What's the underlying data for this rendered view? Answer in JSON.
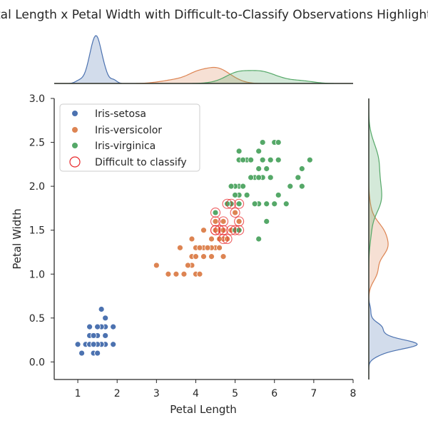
{
  "chart_data": {
    "type": "scatter",
    "title": "Petal Length x Petal Width with Difficult-to-Classify Observations Highlighted",
    "xlabel": "Petal Length",
    "ylabel": "Petal Width",
    "xlim": [
      0.4,
      8.0
    ],
    "ylim": [
      -0.2,
      3.0
    ],
    "xticks": [
      "1",
      "2",
      "3",
      "4",
      "5",
      "6",
      "7",
      "8"
    ],
    "yticks": [
      "0.0",
      "0.5",
      "1.0",
      "1.5",
      "2.0",
      "2.5",
      "3.0"
    ],
    "grid": false,
    "legend_position": "top-left",
    "marginal_x": "kde",
    "marginal_y": "kde",
    "series": [
      {
        "name": "Iris-setosa",
        "color": "#4c72b0",
        "points": [
          [
            1.4,
            0.2
          ],
          [
            1.4,
            0.2
          ],
          [
            1.3,
            0.2
          ],
          [
            1.5,
            0.2
          ],
          [
            1.4,
            0.2
          ],
          [
            1.7,
            0.4
          ],
          [
            1.4,
            0.3
          ],
          [
            1.5,
            0.2
          ],
          [
            1.4,
            0.2
          ],
          [
            1.5,
            0.1
          ],
          [
            1.5,
            0.2
          ],
          [
            1.6,
            0.2
          ],
          [
            1.4,
            0.1
          ],
          [
            1.1,
            0.1
          ],
          [
            1.2,
            0.2
          ],
          [
            1.5,
            0.4
          ],
          [
            1.3,
            0.4
          ],
          [
            1.4,
            0.3
          ],
          [
            1.7,
            0.3
          ],
          [
            1.5,
            0.3
          ],
          [
            1.7,
            0.2
          ],
          [
            1.5,
            0.4
          ],
          [
            1.0,
            0.2
          ],
          [
            1.7,
            0.5
          ],
          [
            1.9,
            0.2
          ],
          [
            1.6,
            0.2
          ],
          [
            1.6,
            0.4
          ],
          [
            1.5,
            0.2
          ],
          [
            1.4,
            0.2
          ],
          [
            1.6,
            0.2
          ],
          [
            1.6,
            0.2
          ],
          [
            1.5,
            0.4
          ],
          [
            1.5,
            0.1
          ],
          [
            1.4,
            0.2
          ],
          [
            1.5,
            0.1
          ],
          [
            1.2,
            0.2
          ],
          [
            1.3,
            0.2
          ],
          [
            1.5,
            0.1
          ],
          [
            1.3,
            0.2
          ],
          [
            1.5,
            0.2
          ],
          [
            1.3,
            0.3
          ],
          [
            1.3,
            0.3
          ],
          [
            1.3,
            0.2
          ],
          [
            1.6,
            0.6
          ],
          [
            1.9,
            0.4
          ],
          [
            1.4,
            0.3
          ],
          [
            1.6,
            0.2
          ],
          [
            1.4,
            0.2
          ],
          [
            1.5,
            0.2
          ],
          [
            1.4,
            0.2
          ]
        ]
      },
      {
        "name": "Iris-versicolor",
        "color": "#dd8452",
        "points": [
          [
            4.7,
            1.4
          ],
          [
            4.5,
            1.5
          ],
          [
            4.9,
            1.5
          ],
          [
            4.0,
            1.3
          ],
          [
            4.6,
            1.5
          ],
          [
            4.5,
            1.3
          ],
          [
            4.7,
            1.6
          ],
          [
            3.3,
            1.0
          ],
          [
            4.6,
            1.3
          ],
          [
            3.9,
            1.4
          ],
          [
            3.5,
            1.0
          ],
          [
            4.2,
            1.5
          ],
          [
            4.0,
            1.0
          ],
          [
            4.7,
            1.4
          ],
          [
            3.6,
            1.3
          ],
          [
            4.4,
            1.4
          ],
          [
            4.5,
            1.5
          ],
          [
            4.1,
            1.0
          ],
          [
            4.5,
            1.5
          ],
          [
            3.9,
            1.1
          ],
          [
            4.8,
            1.8
          ],
          [
            4.0,
            1.3
          ],
          [
            4.9,
            1.5
          ],
          [
            4.7,
            1.2
          ],
          [
            4.3,
            1.3
          ],
          [
            4.4,
            1.4
          ],
          [
            4.8,
            1.4
          ],
          [
            5.0,
            1.7
          ],
          [
            4.5,
            1.5
          ],
          [
            3.5,
            1.0
          ],
          [
            3.8,
            1.1
          ],
          [
            3.7,
            1.0
          ],
          [
            3.9,
            1.2
          ],
          [
            5.1,
            1.6
          ],
          [
            4.5,
            1.5
          ],
          [
            4.5,
            1.6
          ],
          [
            4.7,
            1.5
          ],
          [
            4.4,
            1.3
          ],
          [
            4.1,
            1.3
          ],
          [
            4.0,
            1.3
          ],
          [
            4.4,
            1.2
          ],
          [
            4.6,
            1.4
          ],
          [
            4.0,
            1.2
          ],
          [
            3.3,
            1.0
          ],
          [
            4.2,
            1.3
          ],
          [
            4.2,
            1.2
          ],
          [
            4.2,
            1.3
          ],
          [
            4.3,
            1.3
          ],
          [
            3.0,
            1.1
          ],
          [
            4.1,
            1.3
          ]
        ]
      },
      {
        "name": "Iris-virginica",
        "color": "#55a868",
        "points": [
          [
            6.0,
            2.5
          ],
          [
            5.1,
            1.9
          ],
          [
            5.9,
            2.1
          ],
          [
            5.6,
            1.8
          ],
          [
            5.8,
            2.2
          ],
          [
            6.6,
            2.1
          ],
          [
            4.5,
            1.7
          ],
          [
            6.3,
            1.8
          ],
          [
            5.8,
            1.8
          ],
          [
            6.1,
            2.5
          ],
          [
            5.1,
            2.0
          ],
          [
            5.3,
            1.9
          ],
          [
            5.5,
            2.1
          ],
          [
            5.0,
            2.0
          ],
          [
            5.1,
            2.4
          ],
          [
            5.3,
            2.3
          ],
          [
            5.5,
            1.8
          ],
          [
            6.7,
            2.2
          ],
          [
            6.9,
            2.3
          ],
          [
            5.0,
            1.5
          ],
          [
            5.7,
            2.3
          ],
          [
            4.9,
            2.0
          ],
          [
            6.7,
            2.0
          ],
          [
            4.9,
            1.8
          ],
          [
            5.7,
            2.1
          ],
          [
            6.0,
            1.8
          ],
          [
            4.8,
            1.8
          ],
          [
            4.9,
            1.8
          ],
          [
            5.6,
            2.1
          ],
          [
            5.8,
            1.6
          ],
          [
            6.1,
            1.9
          ],
          [
            6.4,
            2.0
          ],
          [
            5.6,
            2.2
          ],
          [
            5.1,
            1.5
          ],
          [
            5.6,
            1.4
          ],
          [
            6.1,
            2.3
          ],
          [
            5.6,
            2.4
          ],
          [
            5.5,
            1.8
          ],
          [
            4.8,
            1.8
          ],
          [
            5.4,
            2.1
          ],
          [
            5.6,
            2.4
          ],
          [
            5.1,
            2.3
          ],
          [
            5.1,
            1.9
          ],
          [
            5.9,
            2.3
          ],
          [
            5.7,
            2.5
          ],
          [
            5.2,
            2.3
          ],
          [
            5.0,
            1.9
          ],
          [
            5.2,
            2.0
          ],
          [
            5.4,
            2.3
          ],
          [
            5.1,
            1.8
          ]
        ]
      }
    ],
    "difficult_to_classify": {
      "name": "Difficult to classify",
      "color": "#e8282b",
      "points": [
        [
          4.5,
          1.7
        ],
        [
          4.5,
          1.6
        ],
        [
          4.5,
          1.5
        ],
        [
          4.7,
          1.4
        ],
        [
          4.8,
          1.4
        ],
        [
          4.9,
          1.5
        ],
        [
          5.0,
          1.5
        ],
        [
          5.1,
          1.5
        ],
        [
          5.0,
          1.7
        ],
        [
          5.1,
          1.6
        ],
        [
          4.8,
          1.8
        ],
        [
          4.9,
          1.8
        ],
        [
          5.1,
          1.8
        ],
        [
          4.7,
          1.6
        ],
        [
          4.6,
          1.5
        ],
        [
          4.5,
          1.5
        ],
        [
          4.7,
          1.5
        ]
      ]
    }
  }
}
